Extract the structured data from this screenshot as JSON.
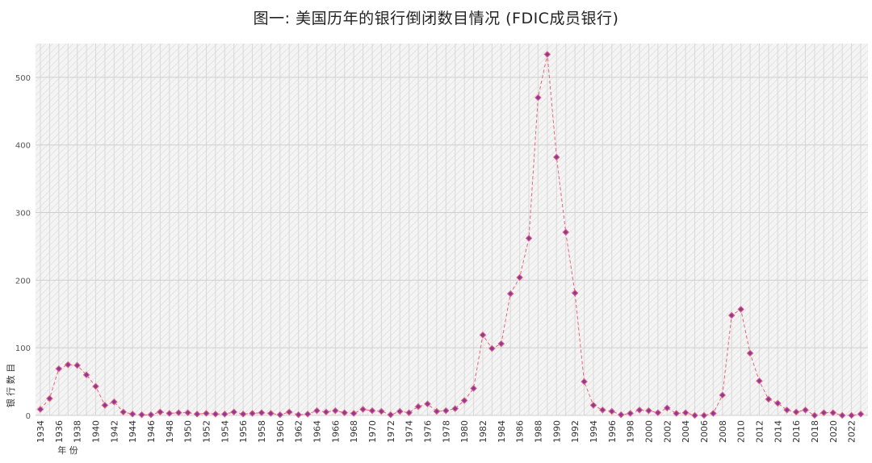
{
  "chart_data": {
    "type": "line",
    "title": "图一:  美国历年的银行倒闭数目情况 (FDIC成员银行)",
    "xlabel": "年 份",
    "ylabel": "银 行 数 目",
    "ylim": [
      0,
      550
    ],
    "yticks": [
      0,
      100,
      200,
      300,
      400,
      500
    ],
    "xticks": [
      1934,
      1936,
      1938,
      1940,
      1942,
      1944,
      1946,
      1948,
      1950,
      1952,
      1954,
      1956,
      1958,
      1960,
      1962,
      1964,
      1966,
      1968,
      1970,
      1972,
      1974,
      1976,
      1978,
      1980,
      1982,
      1984,
      1986,
      1988,
      1990,
      1992,
      1994,
      1996,
      1998,
      2000,
      2002,
      2004,
      2006,
      2008,
      2010,
      2012,
      2014,
      2016,
      2018,
      2020,
      2022
    ],
    "grid": true,
    "series_color": "#e8647a",
    "marker_color": "#8a3a9e",
    "x": [
      1934,
      1935,
      1936,
      1937,
      1938,
      1939,
      1940,
      1941,
      1942,
      1943,
      1944,
      1945,
      1946,
      1947,
      1948,
      1949,
      1950,
      1951,
      1952,
      1953,
      1954,
      1955,
      1956,
      1957,
      1958,
      1959,
      1960,
      1961,
      1962,
      1963,
      1964,
      1965,
      1966,
      1967,
      1968,
      1969,
      1970,
      1971,
      1972,
      1973,
      1974,
      1975,
      1976,
      1977,
      1978,
      1979,
      1980,
      1981,
      1982,
      1983,
      1984,
      1985,
      1986,
      1987,
      1988,
      1989,
      1990,
      1991,
      1992,
      1993,
      1994,
      1995,
      1996,
      1997,
      1998,
      1999,
      2000,
      2001,
      2002,
      2003,
      2004,
      2005,
      2006,
      2007,
      2008,
      2009,
      2010,
      2011,
      2012,
      2013,
      2014,
      2015,
      2016,
      2017,
      2018,
      2019,
      2020,
      2021,
      2022,
      2023
    ],
    "values": [
      9,
      25,
      69,
      75,
      74,
      60,
      43,
      15,
      20,
      5,
      2,
      1,
      1,
      5,
      3,
      4,
      4,
      2,
      3,
      2,
      2,
      5,
      2,
      3,
      4,
      3,
      1,
      5,
      1,
      2,
      7,
      5,
      7,
      4,
      3,
      9,
      7,
      6,
      1,
      6,
      4,
      13,
      17,
      6,
      7,
      10,
      22,
      40,
      119,
      99,
      106,
      180,
      204,
      262,
      470,
      534,
      382,
      271,
      181,
      50,
      15,
      8,
      6,
      1,
      3,
      8,
      7,
      4,
      11,
      3,
      4,
      0,
      0,
      3,
      30,
      148,
      157,
      92,
      51,
      24,
      18,
      8,
      5,
      8,
      0,
      4,
      4,
      0,
      0,
      2
    ]
  }
}
